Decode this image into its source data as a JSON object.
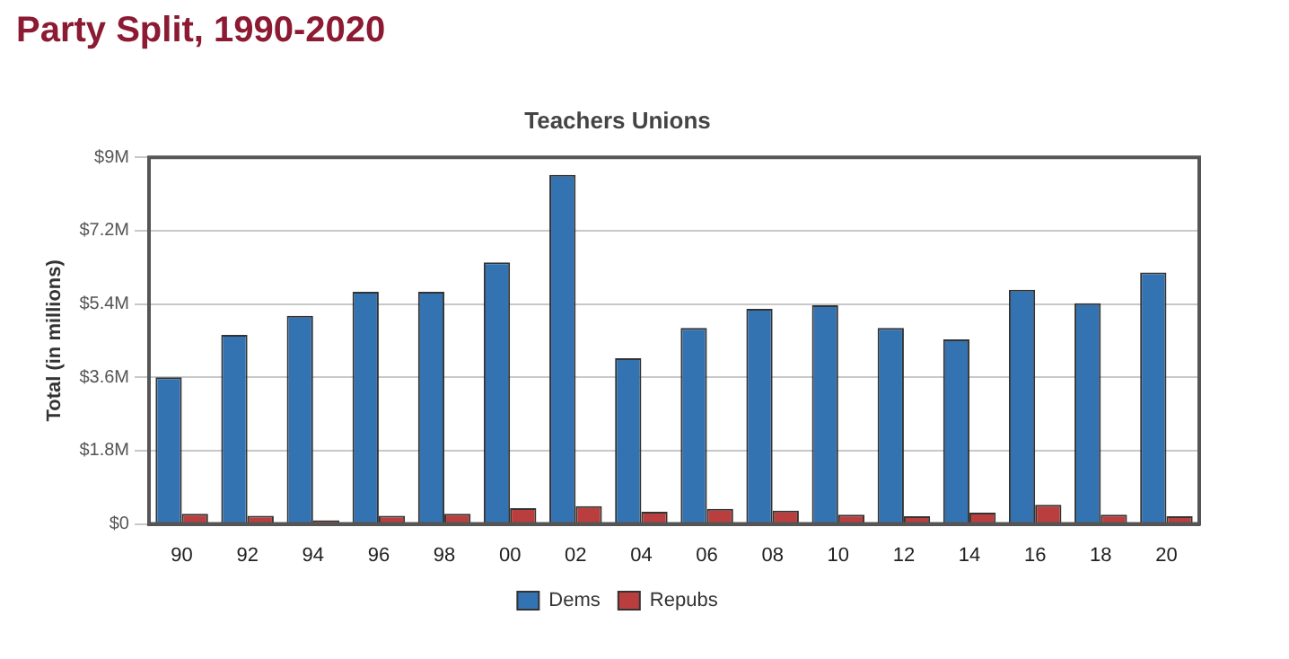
{
  "chart_data": {
    "type": "bar",
    "title": "Party Split, 1990-2020",
    "subtitle": "Teachers Unions",
    "ylabel": "Total (in millions)",
    "categories": [
      "90",
      "92",
      "94",
      "96",
      "98",
      "00",
      "02",
      "04",
      "06",
      "08",
      "10",
      "12",
      "14",
      "16",
      "18",
      "20"
    ],
    "series": [
      {
        "name": "Dems",
        "color": "#3473b1",
        "values": [
          3.6,
          4.64,
          5.11,
          5.7,
          5.7,
          6.42,
          8.57,
          4.07,
          4.81,
          5.28,
          5.37,
          4.81,
          4.53,
          5.75,
          5.42,
          6.17
        ]
      },
      {
        "name": "Repubs",
        "color": "#bb3e3e",
        "values": [
          0.25,
          0.2,
          0.09,
          0.2,
          0.25,
          0.39,
          0.44,
          0.3,
          0.37,
          0.33,
          0.23,
          0.19,
          0.28,
          0.47,
          0.23,
          0.19
        ]
      }
    ],
    "ylim": [
      0,
      9
    ],
    "yticks": [
      {
        "value": 0,
        "label": "$0"
      },
      {
        "value": 1.8,
        "label": "$1.8M"
      },
      {
        "value": 3.6,
        "label": "$3.6M"
      },
      {
        "value": 5.4,
        "label": "$5.4M"
      },
      {
        "value": 7.2,
        "label": "$7.2M"
      },
      {
        "value": 9,
        "label": "$9M"
      }
    ],
    "grid": "y",
    "legend": "bottom"
  }
}
